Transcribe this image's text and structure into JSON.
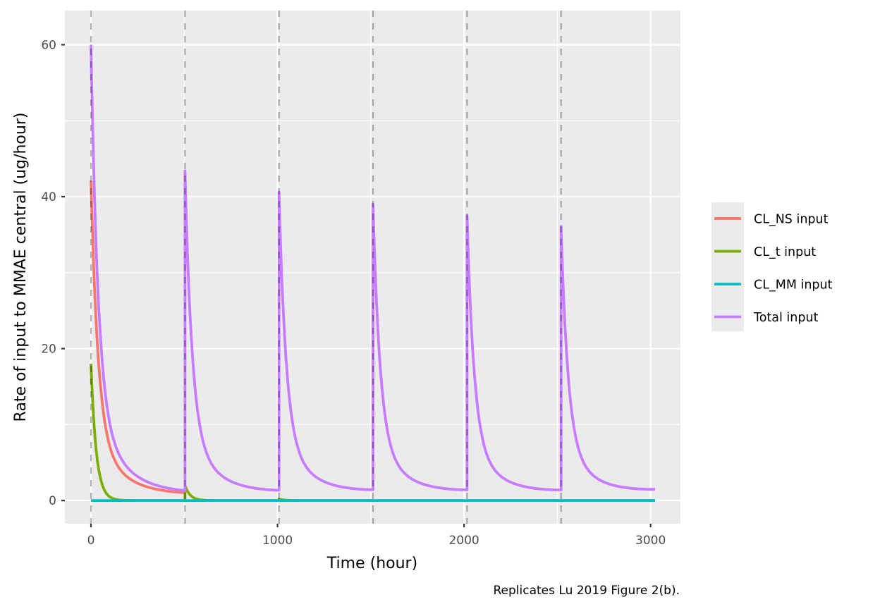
{
  "chart_data": {
    "type": "line",
    "title": "",
    "xlabel": "Time (hour)",
    "ylabel": "Rate of input to MMAE central (ug/hour)",
    "caption": "Replicates Lu 2019 Figure 2(b).",
    "xlim": [
      -140,
      3160
    ],
    "ylim": [
      -3.05,
      64.5
    ],
    "x_ticks": [
      0,
      1000,
      2000,
      3000
    ],
    "y_ticks": [
      0,
      20,
      40,
      60
    ],
    "grid": true,
    "legend_position": "right",
    "dose_times": [
      0,
      504,
      1008,
      1512,
      2016,
      2520
    ],
    "x_end": 3024,
    "series": [
      {
        "name": "CL_NS input",
        "color": "#F8766D",
        "peaks": [
          42.7,
          0,
          0,
          0,
          0,
          0
        ],
        "trough_end": [
          0.6,
          0,
          0,
          0,
          0,
          0
        ],
        "note": "Red curve visible only after first dose; afterwards overlaps Total input"
      },
      {
        "name": "CL_t input",
        "color": "#7CAE00",
        "peaks": [
          18.0,
          2.0,
          0.2,
          0,
          0,
          0
        ],
        "trough_end": [
          0.02,
          0,
          0,
          0,
          0,
          0
        ]
      },
      {
        "name": "CL_MM input",
        "color": "#00BFC4",
        "peaks": [
          0,
          0,
          0,
          0,
          0,
          0
        ],
        "trough_end": [
          0,
          0,
          0,
          0,
          0,
          0
        ]
      },
      {
        "name": "Total input",
        "color": "#C77CFF",
        "peaks": [
          60.7,
          44.3,
          41.6,
          40.0,
          38.5,
          37.2
        ],
        "trough_end": [
          0.7,
          0.9,
          1.0,
          1.0,
          1.0,
          1.1
        ]
      }
    ]
  }
}
